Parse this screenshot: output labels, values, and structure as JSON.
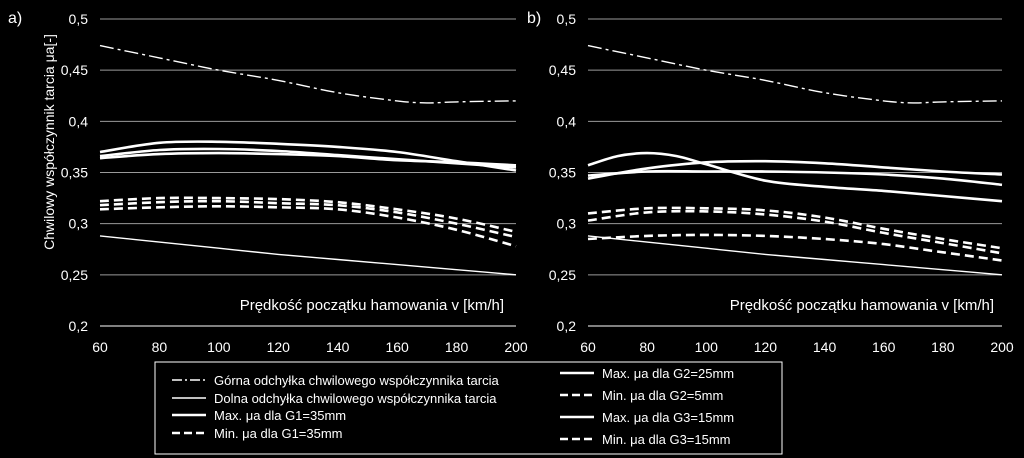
{
  "shared": {
    "xlabel": "Prędkość  początku hamowania v [km/h]",
    "ylabel": "Chwilowy współczynnik tarcia μa[-]",
    "xticks": [
      60,
      80,
      100,
      120,
      140,
      160,
      180,
      200
    ],
    "yticks": [
      "0,2",
      "0,25",
      "0,3",
      "0,35",
      "0,4",
      "0,45",
      "0,5"
    ],
    "xlim": [
      60,
      200
    ],
    "ylim": [
      0.2,
      0.5
    ],
    "grid": "horizontal"
  },
  "legend": {
    "items": [
      {
        "label": "Górna odchyłka chwilowego współczynnika tarcia",
        "style": "dashdot"
      },
      {
        "label": "Dolna odchyłka chwilowego współczynnika tarcia",
        "style": "thin"
      },
      {
        "label": "Max. μa dla G1=35mm",
        "style": "solid"
      },
      {
        "label": "Min. μa dla G1=35mm",
        "style": "dashed"
      },
      {
        "label": "Max. μa dla G2=25mm",
        "style": "solid"
      },
      {
        "label": "Min. μa dla G2=5mm",
        "style": "dashed"
      },
      {
        "label": "Max. μa dla G3=15mm",
        "style": "solid"
      },
      {
        "label": "Min. μa dla G3=15mm",
        "style": "dashed"
      }
    ]
  },
  "chart_data": [
    {
      "type": "line",
      "panel_label": "a)",
      "series": [
        {
          "name": "Górna odchyłka chwilowego współczynnika tarcia",
          "style": "dashdot",
          "x": [
            60,
            80,
            100,
            120,
            140,
            160,
            170,
            180,
            200
          ],
          "y": [
            0.474,
            0.462,
            0.45,
            0.44,
            0.428,
            0.42,
            0.418,
            0.419,
            0.42
          ]
        },
        {
          "name": "Dolna odchyłka chwilowego współczynnika tarcia",
          "style": "thin",
          "x": [
            60,
            80,
            100,
            120,
            140,
            160,
            180,
            200
          ],
          "y": [
            0.288,
            0.282,
            0.276,
            0.27,
            0.265,
            0.26,
            0.255,
            0.25
          ]
        },
        {
          "name": "Max. μa dla G1=35mm",
          "style": "solid",
          "x": [
            60,
            80,
            100,
            120,
            140,
            160,
            180,
            200
          ],
          "y": [
            0.37,
            0.379,
            0.38,
            0.378,
            0.375,
            0.37,
            0.361,
            0.352
          ]
        },
        {
          "name": "Max. μa dla G1=35mm",
          "style": "solid",
          "x": [
            60,
            80,
            100,
            120,
            140,
            160,
            180,
            200
          ],
          "y": [
            0.366,
            0.372,
            0.373,
            0.371,
            0.367,
            0.363,
            0.359,
            0.355
          ]
        },
        {
          "name": "Max. μa dla G1=35mm",
          "style": "solid",
          "x": [
            60,
            80,
            100,
            120,
            140,
            160,
            180,
            200
          ],
          "y": [
            0.364,
            0.368,
            0.369,
            0.368,
            0.366,
            0.362,
            0.36,
            0.357
          ]
        },
        {
          "name": "Min. μa dla G1=35mm",
          "style": "dashed",
          "x": [
            60,
            80,
            100,
            120,
            140,
            160,
            180,
            200
          ],
          "y": [
            0.322,
            0.325,
            0.325,
            0.324,
            0.321,
            0.314,
            0.305,
            0.292
          ]
        },
        {
          "name": "Min. μa dla G1=35mm",
          "style": "dashed",
          "x": [
            60,
            80,
            100,
            120,
            140,
            160,
            180,
            200
          ],
          "y": [
            0.318,
            0.321,
            0.322,
            0.32,
            0.318,
            0.311,
            0.3,
            0.287
          ]
        },
        {
          "name": "Min. μa dla G1=35mm",
          "style": "dashed",
          "x": [
            60,
            80,
            100,
            120,
            140,
            160,
            180,
            200
          ],
          "y": [
            0.314,
            0.316,
            0.317,
            0.316,
            0.314,
            0.306,
            0.294,
            0.278
          ]
        }
      ]
    },
    {
      "type": "line",
      "panel_label": "b)",
      "series": [
        {
          "name": "Górna odchyłka chwilowego współczynnika tarcia",
          "style": "dashdot",
          "x": [
            60,
            80,
            100,
            120,
            140,
            160,
            170,
            180,
            200
          ],
          "y": [
            0.474,
            0.462,
            0.45,
            0.44,
            0.428,
            0.42,
            0.418,
            0.419,
            0.42
          ]
        },
        {
          "name": "Dolna odchyłka chwilowego współczynnika tarcia",
          "style": "thin",
          "x": [
            60,
            80,
            100,
            120,
            140,
            160,
            180,
            200
          ],
          "y": [
            0.288,
            0.282,
            0.276,
            0.27,
            0.265,
            0.26,
            0.255,
            0.25
          ]
        },
        {
          "name": "Max. μa dla G2=25mm",
          "style": "solid",
          "x": [
            60,
            70,
            80,
            90,
            100,
            120,
            140,
            160,
            180,
            200
          ],
          "y": [
            0.357,
            0.366,
            0.369,
            0.366,
            0.358,
            0.342,
            0.336,
            0.332,
            0.327,
            0.322
          ]
        },
        {
          "name": "Max. μa dla G3=15mm",
          "style": "solid",
          "x": [
            60,
            80,
            100,
            120,
            140,
            160,
            180,
            200
          ],
          "y": [
            0.344,
            0.354,
            0.36,
            0.361,
            0.359,
            0.355,
            0.351,
            0.348
          ]
        },
        {
          "name": "Max. μa dla G3=15mm",
          "style": "solid",
          "x": [
            60,
            80,
            100,
            120,
            140,
            160,
            180,
            200
          ],
          "y": [
            0.347,
            0.351,
            0.351,
            0.351,
            0.35,
            0.348,
            0.344,
            0.338
          ]
        },
        {
          "name": "Min. μa dla G2=5mm",
          "style": "dashed",
          "x": [
            60,
            80,
            100,
            120,
            140,
            160,
            180,
            200
          ],
          "y": [
            0.31,
            0.315,
            0.315,
            0.313,
            0.306,
            0.295,
            0.285,
            0.276
          ]
        },
        {
          "name": "Min. μa dla G3=15mm",
          "style": "dashed",
          "x": [
            60,
            80,
            100,
            120,
            140,
            160,
            180,
            200
          ],
          "y": [
            0.303,
            0.311,
            0.312,
            0.309,
            0.302,
            0.291,
            0.281,
            0.271
          ]
        },
        {
          "name": "Min. μa dla G2=5mm",
          "style": "dashed",
          "x": [
            60,
            80,
            100,
            120,
            140,
            160,
            180,
            200
          ],
          "y": [
            0.285,
            0.288,
            0.289,
            0.288,
            0.285,
            0.28,
            0.272,
            0.264
          ]
        }
      ]
    }
  ]
}
